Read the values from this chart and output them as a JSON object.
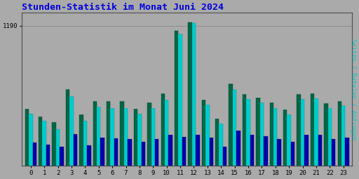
{
  "title": "Stunden-Statistik im Monat Juni 2024",
  "title_color": "#0000dd",
  "ylabel_right": "Seiten / Dateien / Anfragen",
  "background_color": "#aaaaaa",
  "plot_bg_color": "#aaaaaa",
  "ylim_max": 1300,
  "yticks": [
    1190
  ],
  "ytick_labels": [
    "1190"
  ],
  "hours": [
    0,
    1,
    2,
    3,
    4,
    5,
    6,
    7,
    8,
    9,
    10,
    11,
    12,
    13,
    14,
    15,
    16,
    17,
    18,
    19,
    20,
    21,
    22,
    23
  ],
  "seiten": [
    440,
    380,
    310,
    590,
    380,
    500,
    490,
    490,
    440,
    490,
    560,
    1120,
    1215,
    520,
    360,
    650,
    565,
    535,
    490,
    435,
    565,
    570,
    490,
    510
  ],
  "dateien": [
    480,
    420,
    370,
    650,
    435,
    550,
    545,
    545,
    480,
    535,
    615,
    1145,
    1220,
    560,
    400,
    695,
    610,
    578,
    535,
    475,
    610,
    615,
    528,
    548
  ],
  "anfragen": [
    200,
    180,
    160,
    270,
    175,
    240,
    235,
    230,
    205,
    230,
    265,
    245,
    265,
    240,
    160,
    300,
    265,
    250,
    230,
    205,
    265,
    265,
    230,
    240
  ],
  "color_seiten": "#00cccc",
  "color_dateien": "#006644",
  "color_anfragen": "#0000aa",
  "bar_width": 0.28
}
